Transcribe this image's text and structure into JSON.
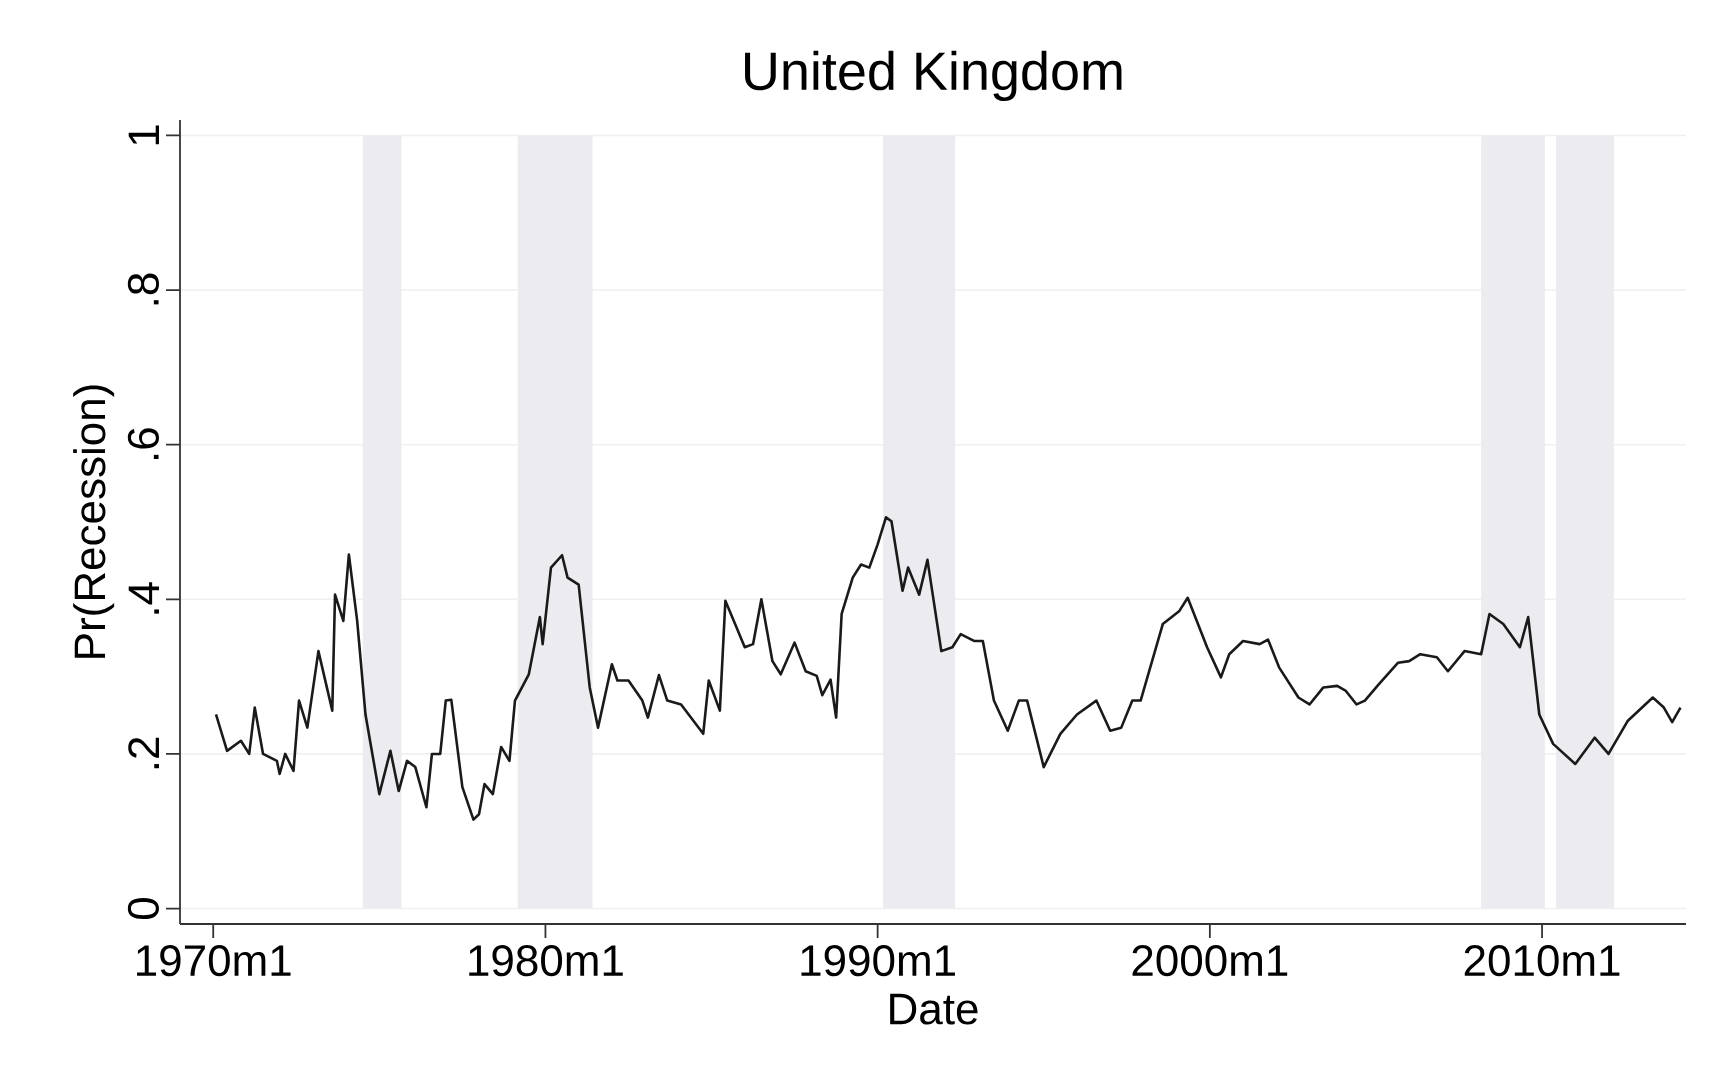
{
  "chart_data": {
    "type": "line",
    "title": "United Kingdom",
    "xlabel": "Date",
    "ylabel": "Pr(Recession)",
    "xlim": [
      "1969-01",
      "2014-05"
    ],
    "ylim": [
      -0.02,
      1.02
    ],
    "xticks": [
      {
        "value": "1970-01",
        "label": "1970m1"
      },
      {
        "value": "1980-01",
        "label": "1980m1"
      },
      {
        "value": "1990-01",
        "label": "1990m1"
      },
      {
        "value": "2000-01",
        "label": "2000m1"
      },
      {
        "value": "2010-01",
        "label": "2010m1"
      }
    ],
    "yticks": [
      0,
      {
        "value": 0.2,
        "label": ".2"
      },
      {
        "value": 0.4,
        "label": ".4"
      },
      {
        "value": 0.6,
        "label": ".6"
      },
      {
        "value": 0.8,
        "label": ".8"
      },
      1
    ],
    "grid": "y",
    "marker": "none",
    "line_style": "solid",
    "bands": [
      {
        "axis": "x",
        "from": "1974-07",
        "to": "1975-09",
        "color": "#ebebf0"
      },
      {
        "axis": "x",
        "from": "1979-03",
        "to": "1981-06",
        "color": "#ebebf0"
      },
      {
        "axis": "x",
        "from": "1990-03",
        "to": "1992-05",
        "color": "#ebebf0"
      },
      {
        "axis": "x",
        "from": "2008-03",
        "to": "2010-02",
        "color": "#ebebf0"
      },
      {
        "axis": "x",
        "from": "2010-06",
        "to": "2012-03",
        "color": "#ebebf0"
      }
    ],
    "series": [
      {
        "color": "#1a1a1a",
        "x": [
          "1970-02",
          "1970-06",
          "1970-11",
          "1971-02",
          "1971-04",
          "1971-07",
          "1971-12",
          "1972-01",
          "1972-03",
          "1972-06",
          "1972-08",
          "1972-11",
          "1973-03",
          "1973-08",
          "1973-09",
          "1973-12",
          "1974-02",
          "1974-05",
          "1974-08",
          "1975-01",
          "1975-05",
          "1975-08",
          "1975-11",
          "1976-02",
          "1976-06",
          "1976-08",
          "1976-11",
          "1977-01",
          "1977-03",
          "1977-07",
          "1977-11",
          "1978-01",
          "1978-03",
          "1978-06",
          "1978-09",
          "1978-12",
          "1979-02",
          "1979-07",
          "1979-11",
          "1979-12",
          "1980-03",
          "1980-07",
          "1980-09",
          "1981-01",
          "1981-05",
          "1981-08",
          "1982-01",
          "1982-03",
          "1982-07",
          "1982-12",
          "1983-02",
          "1983-06",
          "1983-09",
          "1984-02",
          "1984-10",
          "1984-12",
          "1985-04",
          "1985-06",
          "1985-10",
          "1986-01",
          "1986-04",
          "1986-07",
          "1986-11",
          "1987-02",
          "1987-07",
          "1987-11",
          "1988-03",
          "1988-05",
          "1988-08",
          "1988-10",
          "1988-12",
          "1989-04",
          "1989-07",
          "1989-10",
          "1990-01",
          "1990-04",
          "1990-06",
          "1990-10",
          "1990-12",
          "1991-04",
          "1991-07",
          "1991-12",
          "1992-04",
          "1992-07",
          "1992-12",
          "1993-03",
          "1993-07",
          "1993-12",
          "1994-04",
          "1994-07",
          "1995-01",
          "1995-07",
          "1996-01",
          "1996-08",
          "1997-01",
          "1997-05",
          "1997-09",
          "1997-12",
          "1998-08",
          "1999-02",
          "1999-05",
          "1999-12",
          "2000-05",
          "2000-08",
          "2001-01",
          "2001-07",
          "2001-10",
          "2002-02",
          "2002-09",
          "2003-01",
          "2003-06",
          "2003-11",
          "2004-02",
          "2004-06",
          "2004-09",
          "2005-02",
          "2005-09",
          "2006-01",
          "2006-05",
          "2006-11",
          "2007-03",
          "2007-09",
          "2008-03",
          "2008-06",
          "2008-11",
          "2009-05",
          "2009-08",
          "2009-12",
          "2010-05",
          "2011-01",
          "2011-08",
          "2012-01",
          "2012-08",
          "2013-05",
          "2013-09",
          "2013-12",
          "2014-03"
        ],
        "values": [
          0.251,
          0.204,
          0.217,
          0.2,
          0.26,
          0.2,
          0.191,
          0.174,
          0.2,
          0.178,
          0.269,
          0.234,
          0.333,
          0.256,
          0.406,
          0.372,
          0.458,
          0.372,
          0.251,
          0.148,
          0.204,
          0.152,
          0.191,
          0.183,
          0.131,
          0.2,
          0.2,
          0.269,
          0.27,
          0.157,
          0.115,
          0.122,
          0.161,
          0.148,
          0.209,
          0.191,
          0.269,
          0.303,
          0.377,
          0.342,
          0.441,
          0.457,
          0.428,
          0.419,
          0.286,
          0.234,
          0.316,
          0.295,
          0.295,
          0.269,
          0.247,
          0.302,
          0.269,
          0.264,
          0.226,
          0.295,
          0.256,
          0.398,
          0.364,
          0.338,
          0.342,
          0.4,
          0.32,
          0.303,
          0.344,
          0.307,
          0.301,
          0.276,
          0.296,
          0.247,
          0.381,
          0.428,
          0.445,
          0.441,
          0.471,
          0.506,
          0.501,
          0.411,
          0.441,
          0.406,
          0.451,
          0.333,
          0.338,
          0.355,
          0.346,
          0.346,
          0.269,
          0.23,
          0.269,
          0.269,
          0.183,
          0.226,
          0.251,
          0.269,
          0.23,
          0.234,
          0.269,
          0.269,
          0.368,
          0.385,
          0.402,
          0.338,
          0.299,
          0.329,
          0.346,
          0.342,
          0.348,
          0.312,
          0.273,
          0.264,
          0.286,
          0.288,
          0.282,
          0.264,
          0.269,
          0.29,
          0.318,
          0.32,
          0.329,
          0.325,
          0.307,
          0.333,
          0.329,
          0.381,
          0.368,
          0.338,
          0.377,
          0.251,
          0.213,
          0.187,
          0.221,
          0.2,
          0.243,
          0.273,
          0.26,
          0.241,
          0.26
        ]
      }
    ]
  }
}
